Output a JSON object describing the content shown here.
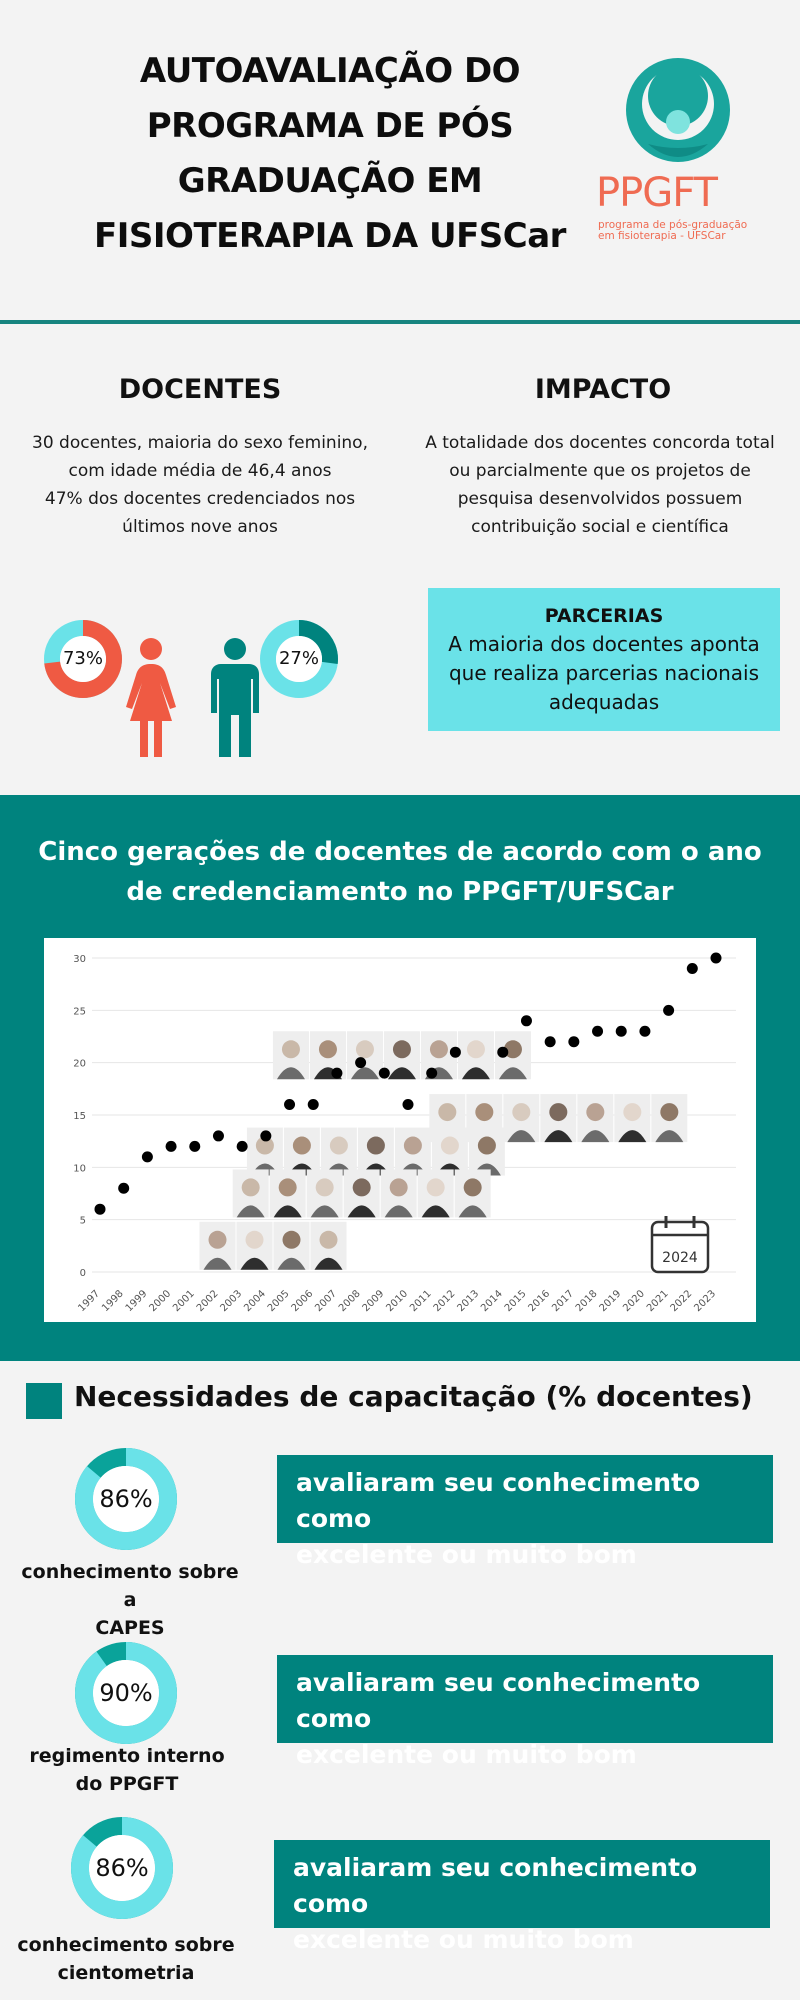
{
  "header": {
    "title_lines": [
      "AUTOAVALIAÇÃO DO",
      "PROGRAMA DE PÓS",
      "GRADUAÇÃO EM",
      "FISIOTERAPIA DA UFSCar"
    ],
    "logo_text": "PPGFT",
    "logo_subtitle_lines": [
      "programa de pós-graduação",
      "em fisioterapia - UFSCar"
    ]
  },
  "docentes": {
    "title": "DOCENTES",
    "text_lines": [
      "30 docentes, maioria do sexo feminino,",
      "com idade média de 46,4 anos",
      "47% dos docentes credenciados nos",
      "últimos nove anos"
    ],
    "female_pct": "73%",
    "male_pct": "27%",
    "female_value": 0.73,
    "male_value": 0.27
  },
  "impacto": {
    "title": "IMPACTO",
    "text_lines": [
      "A totalidade dos docentes concorda total",
      "ou parcialmente que os projetos de",
      "pesquisa desenvolvidos possuem",
      "contribuição social e científica"
    ]
  },
  "parcerias": {
    "title": "PARCERIAS",
    "text_lines": [
      "A maioria dos docentes aponta",
      "que realiza parcerias nacionais",
      "adequadas"
    ]
  },
  "generations": {
    "title_lines": [
      "Cinco gerações de docentes de acordo com o ano",
      "de credenciamento no PPGFT/UFSCar"
    ],
    "calendar_label": "2024"
  },
  "chart_data": {
    "type": "scatter",
    "title": "",
    "xlabel": "",
    "ylabel": "",
    "x": [
      "1997",
      "1998",
      "1999",
      "2000",
      "2001",
      "2002",
      "2003",
      "2004",
      "2005",
      "2006",
      "2007",
      "2008",
      "2009",
      "2010",
      "2011",
      "2012",
      "2013",
      "2014",
      "2015",
      "2016",
      "2017",
      "2018",
      "2019",
      "2020",
      "2021",
      "2022",
      "2023"
    ],
    "y": [
      6,
      8,
      11,
      12,
      12,
      13,
      12,
      13,
      16,
      16,
      19,
      20,
      19,
      16,
      19,
      21,
      null,
      21,
      24,
      22,
      22,
      23,
      23,
      23,
      25,
      29,
      30
    ],
    "yticks": [
      0,
      5,
      10,
      15,
      20,
      25,
      30
    ],
    "ylim": [
      0,
      30
    ],
    "grid": true
  },
  "capacitacao": {
    "title": "Necessidades de capacitação (% docentes)",
    "items": [
      {
        "pct": "86%",
        "value": 0.86,
        "label_lines": [
          "conhecimento sobre a",
          "CAPES"
        ],
        "box_lines": [
          "avaliaram seu conhecimento como",
          "excelente ou muito bom"
        ]
      },
      {
        "pct": "90%",
        "value": 0.9,
        "label_lines": [
          "regimento interno",
          "do PPGFT"
        ],
        "box_lines": [
          "avaliaram seu conhecimento como",
          "excelente ou muito bom"
        ]
      },
      {
        "pct": "86%",
        "value": 0.86,
        "label_lines": [
          "conhecimento sobre",
          "cientometria"
        ],
        "box_lines": [
          "avaliaram seu conhecimento como",
          "excelente ou muito bom"
        ]
      }
    ]
  },
  "colors": {
    "teal": "#00837e",
    "cyan": "#6ae2e8",
    "coral": "#ef5a43",
    "light_cyan": "#5fd8df"
  }
}
